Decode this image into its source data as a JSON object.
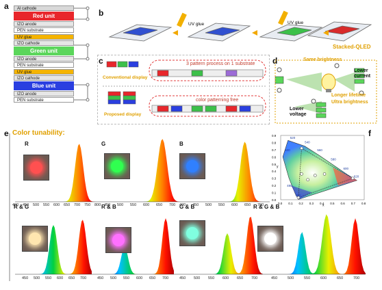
{
  "panel_labels": {
    "a": "a",
    "b": "b",
    "c": "c",
    "d": "d",
    "e": "e",
    "f": "f"
  },
  "stack": {
    "layers": [
      {
        "text": "Al cathode",
        "color": "#d9d9d9"
      },
      {
        "text": "Red unit",
        "color": "#e8262b",
        "unit": true
      },
      {
        "text": "IZO anode",
        "color": "#e6e6e6"
      },
      {
        "text": "PEN substrate",
        "color": "#ffffff"
      },
      {
        "text": "UV glue",
        "color": "#f5b400"
      },
      {
        "text": "IZO cathode",
        "color": "#e6e6e6"
      },
      {
        "text": "Green unit",
        "color": "#5bd65b",
        "unit": true
      },
      {
        "text": "IZO anode",
        "color": "#e6e6e6"
      },
      {
        "text": "PEN substrate",
        "color": "#ffffff"
      },
      {
        "text": "UV glue",
        "color": "#f5b400"
      },
      {
        "text": "IZO cathode",
        "color": "#e6e6e6"
      },
      {
        "text": "Blue unit",
        "color": "#2a3fe0",
        "unit": true
      },
      {
        "text": "IZO anode",
        "color": "#e6e6e6"
      },
      {
        "text": "PEN substrate",
        "color": "#ffffff"
      }
    ]
  },
  "panel_b": {
    "uv_glue_1": "UV glue",
    "uv_glue_2": "UV glue",
    "result": "Stacked-QLED"
  },
  "panel_c": {
    "conventional": "Conventional display",
    "conventional_note": "3 pattern process on 1 substrate",
    "proposed": "Proposed display",
    "proposed_note": "color patterning free"
  },
  "panel_d": {
    "same_brightness": "Same brightness",
    "lower_current": "Lower current",
    "longer_lifetime": "Longer lifetime",
    "ultra_brightness": "Ultra brightness",
    "lower_voltage": "Lower voltage"
  },
  "panel_e": {
    "heading": "Color tunability:",
    "titles": [
      "R",
      "G",
      "B",
      "R & G",
      "R & B",
      "G & B",
      "R & G & B"
    ],
    "ticks_top": [
      "400",
      "450",
      "500",
      "550",
      "600",
      "650",
      "700",
      "750",
      "800",
      "450",
      "500",
      "550",
      "600",
      "650",
      "700",
      "400",
      "450",
      "500",
      "550",
      "600",
      "650",
      "700"
    ],
    "ticks_bottom": [
      "450",
      "500",
      "550",
      "600",
      "650",
      "700",
      "450",
      "500",
      "550",
      "600",
      "650",
      "700",
      "450",
      "500",
      "550",
      "600",
      "650",
      "700",
      "450",
      "500",
      "550",
      "600",
      "650",
      "700"
    ]
  },
  "panel_f": {
    "xlabel": "x",
    "ylabel": "y",
    "x_ticks": [
      "0.0",
      "0.1",
      "0.2",
      "0.3",
      "0.4",
      "0.5",
      "0.6",
      "0.7",
      "0.8"
    ],
    "y_ticks": [
      "0.0",
      "0.1",
      "0.2",
      "0.3",
      "0.4",
      "0.5",
      "0.6",
      "0.7",
      "0.8",
      "0.9"
    ],
    "wavelengths": [
      "520",
      "540",
      "560",
      "580",
      "600",
      "620",
      "500",
      "480",
      "460"
    ]
  },
  "colors": {
    "accent_orange": "#e0a000",
    "dashed_red": "#e23b3b"
  }
}
